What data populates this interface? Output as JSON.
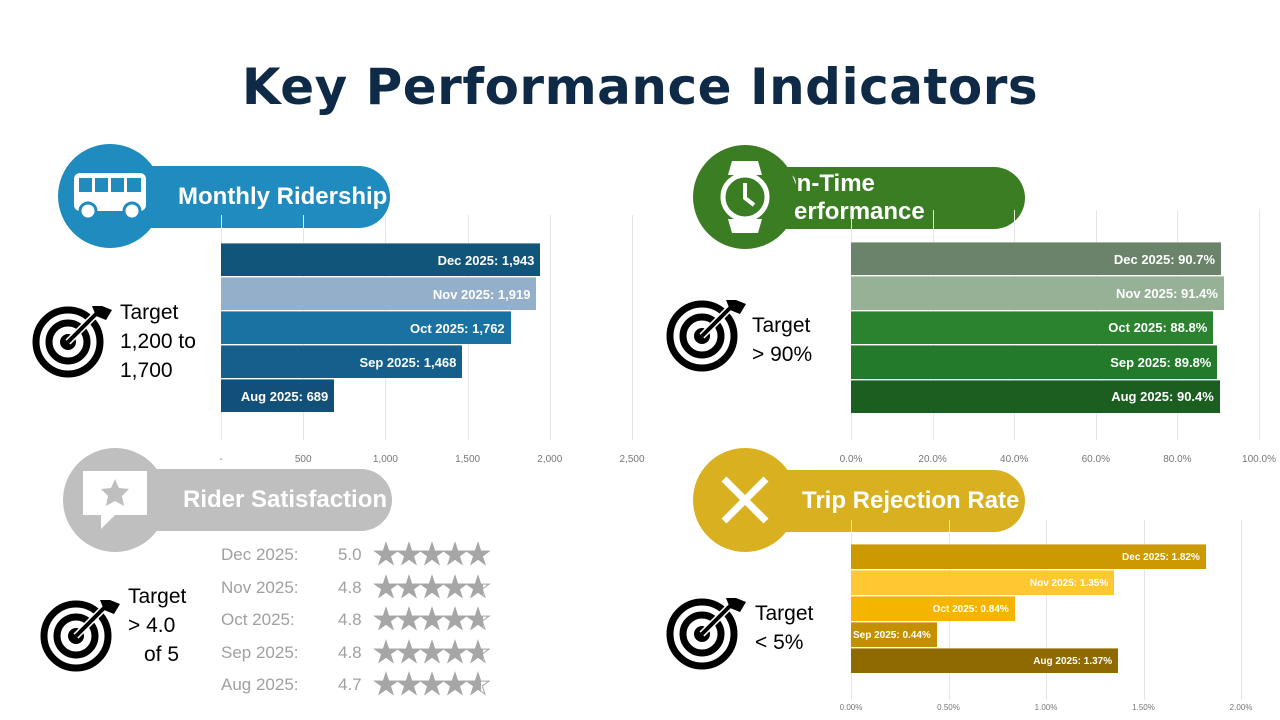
{
  "title": "Key Performance Indicators",
  "chart_data": [
    {
      "type": "bar",
      "orientation": "horizontal",
      "title": "Monthly Ridership",
      "icon": "bus-icon",
      "color": "#1f8bbf",
      "target": [
        "Target",
        "1,200 to",
        "1,700"
      ],
      "categories": [
        "Dec 2025",
        "Nov 2025",
        "Oct 2025",
        "Sep 2025",
        "Aug 2025"
      ],
      "values": [
        1943,
        1919,
        1762,
        1468,
        689
      ],
      "labels": [
        "Dec 2025:  1,943",
        "Nov 2025:  1,919",
        "Oct 2025:  1,762",
        "Sep 2025:  1,468",
        "Aug 2025:  689"
      ],
      "bar_colors": [
        "#11567a",
        "#93afca",
        "#1a72a2",
        "#145f8b",
        "#12507a"
      ],
      "xlim": [
        0,
        2500
      ],
      "ticks": [
        "-",
        "500",
        "1,000",
        "1,500",
        "2,000",
        "2,500"
      ],
      "grid": true
    },
    {
      "type": "bar",
      "orientation": "horizontal",
      "title": "On-Time Performance",
      "icon": "watch-icon",
      "color": "#3a7d23",
      "target": [
        "Target",
        "> 90%"
      ],
      "categories": [
        "Dec 2025",
        "Nov 2025",
        "Oct 2025",
        "Sep 2025",
        "Aug 2025"
      ],
      "values": [
        90.7,
        91.4,
        88.8,
        89.8,
        90.4
      ],
      "labels": [
        "Dec 2025: 90.7%",
        "Nov 2025: 91.4%",
        "Oct 2025: 88.8%",
        "Sep 2025: 89.8%",
        "Aug 2025: 90.4%"
      ],
      "bar_colors": [
        "#6b836b",
        "#96b196",
        "#2b8330",
        "#237a2b",
        "#1b5e20"
      ],
      "xlim": [
        0,
        100
      ],
      "ticks": [
        "0.0%",
        "20.0%",
        "40.0%",
        "60.0%",
        "80.0%",
        "100.0%"
      ],
      "grid": true
    },
    {
      "type": "table",
      "title": "Rider Satisfaction",
      "icon": "star-speech-bubble-icon",
      "color": "#bfbfbf",
      "target": [
        "Target",
        "> 4.0",
        "of 5"
      ],
      "categories": [
        "Dec 2025:",
        "Nov 2025:",
        "Oct 2025:",
        "Sep 2025:",
        "Aug 2025:"
      ],
      "values": [
        5.0,
        4.8,
        4.8,
        4.8,
        4.7
      ],
      "labels": [
        "5.0",
        "4.8",
        "4.8",
        "4.8",
        "4.7"
      ],
      "max": 5
    },
    {
      "type": "bar",
      "orientation": "horizontal",
      "title": "Trip Rejection Rate",
      "icon": "x-icon",
      "color": "#d9b020",
      "target": [
        "Target",
        "< 5%"
      ],
      "categories": [
        "Dec 2025",
        "Nov 2025",
        "Oct 2025",
        "Sep 2025",
        "Aug 2025"
      ],
      "values": [
        1.82,
        1.35,
        0.84,
        0.44,
        1.37
      ],
      "labels": [
        "Dec 2025: 1.82%",
        "Nov 2025: 1.35%",
        "Oct 2025: 0.84%",
        "Sep 2025: 0.44%",
        "Aug 2025: 1.37%"
      ],
      "bar_colors": [
        "#cc9a00",
        "#ffc832",
        "#f5b400",
        "#c49000",
        "#8f6a00"
      ],
      "xlim": [
        0,
        2
      ],
      "ticks": [
        "0.00%",
        "0.50%",
        "1.00%",
        "1.50%",
        "2.00%"
      ],
      "grid": true
    }
  ]
}
